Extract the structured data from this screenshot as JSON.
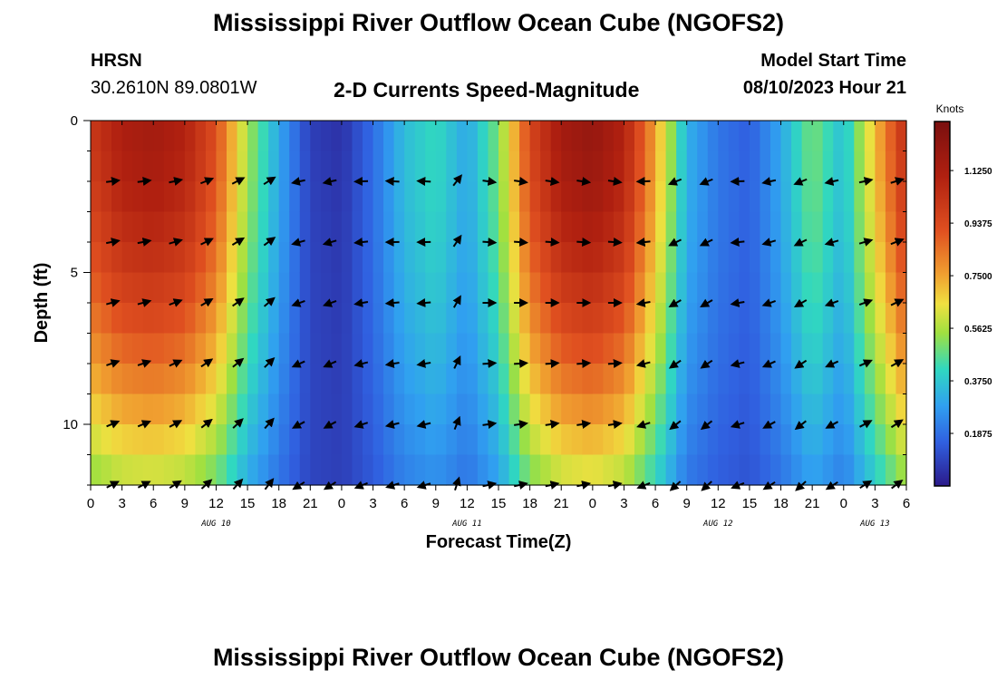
{
  "header": {
    "title": "Mississippi River Outflow Ocean Cube (NGOFS2)",
    "station": "HRSN",
    "location": "30.2610N  89.0801W",
    "subtitle": "2-D Currents Speed-Magnitude",
    "model_label": "Model Start Time",
    "model_time": "08/10/2023 Hour 21"
  },
  "footer": {
    "title": "Mississippi River Outflow Ocean Cube (NGOFS2)"
  },
  "chart_data": {
    "type": "heatmap",
    "title": "2-D Currents Speed-Magnitude",
    "xlabel": "Forecast Time(Z)",
    "ylabel": "Depth (ft)",
    "x_tick_labels": [
      "0",
      "3",
      "6",
      "9",
      "12",
      "15",
      "18",
      "21",
      "0",
      "3",
      "6",
      "9",
      "12",
      "15",
      "18",
      "21",
      "0",
      "3",
      "6",
      "9",
      "12",
      "15",
      "18",
      "21",
      "0",
      "3",
      "6"
    ],
    "x_range_hours": [
      0,
      78
    ],
    "date_labels": [
      {
        "text": "AUG 10",
        "hour": 12
      },
      {
        "text": "AUG 11",
        "hour": 36
      },
      {
        "text": "AUG 12",
        "hour": 60
      },
      {
        "text": "AUG 13",
        "hour": 75
      }
    ],
    "y_ticks": [
      0,
      5,
      10
    ],
    "y_tick_labels": [
      "0",
      "5",
      "10"
    ],
    "ylim": [
      0,
      12
    ],
    "colorbar": {
      "unit": "Knots",
      "min": 0,
      "max": 1.3,
      "ticks": [
        "0.1875",
        "0.3750",
        "0.5625",
        "0.7500",
        "0.9375",
        "1.1250"
      ]
    },
    "speed_profile_knots": [
      1.0,
      1.12,
      1.15,
      1.1,
      0.92,
      0.55,
      0.3,
      0.08,
      0.05,
      0.18,
      0.35,
      0.42,
      0.3,
      0.5,
      0.95,
      1.15,
      1.2,
      1.1,
      0.75,
      0.32,
      0.2,
      0.15,
      0.3,
      0.5,
      0.35,
      0.7,
      1.05
    ],
    "vector_directions_deg": [
      20,
      15,
      15,
      20,
      30,
      35,
      40,
      -160,
      -160,
      -170,
      -175,
      -175,
      60,
      0,
      0,
      0,
      0,
      0,
      -170,
      -150,
      -150,
      -170,
      -160,
      -150,
      -160,
      20,
      25
    ]
  },
  "colors": {
    "background": "#ffffff",
    "scale_low": "#2b1a8a",
    "scale_high": "#7a0f0f"
  }
}
